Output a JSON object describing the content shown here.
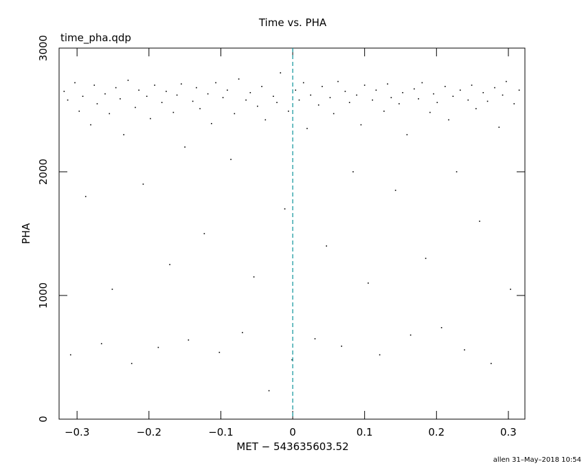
{
  "chart_data": {
    "type": "scatter",
    "title": "Time vs. PHA",
    "subtitle": "time_pha.qdp",
    "x_label": "MET − 543635603.52",
    "y_label": "PHA",
    "footer": "allen 31–May–2018 10:54",
    "color": "#000000",
    "vline": {
      "value": 0,
      "color": "#1a9aa0"
    },
    "xlim": [
      -0.325,
      0.323
    ],
    "ylim": [
      0,
      3000
    ],
    "xticks": [
      {
        "value": -0.3,
        "label": "−0.3"
      },
      {
        "value": -0.2,
        "label": "−0.2"
      },
      {
        "value": -0.1,
        "label": "−0.1"
      },
      0,
      0.1,
      0.2,
      0.3
    ],
    "yticks": [
      0,
      1000,
      2000,
      3000
    ],
    "x": [
      -0.318,
      -0.313,
      -0.309,
      -0.303,
      -0.297,
      -0.292,
      -0.288,
      -0.281,
      -0.276,
      -0.272,
      -0.266,
      -0.261,
      -0.255,
      -0.251,
      -0.246,
      -0.24,
      -0.235,
      -0.229,
      -0.224,
      -0.219,
      -0.214,
      -0.208,
      -0.203,
      -0.198,
      -0.192,
      -0.187,
      -0.182,
      -0.176,
      -0.171,
      -0.166,
      -0.161,
      -0.155,
      -0.15,
      -0.145,
      -0.139,
      -0.134,
      -0.129,
      -0.123,
      -0.118,
      -0.113,
      -0.107,
      -0.102,
      -0.097,
      -0.091,
      -0.086,
      -0.081,
      -0.075,
      -0.07,
      -0.065,
      -0.059,
      -0.054,
      -0.049,
      -0.043,
      -0.038,
      -0.033,
      -0.027,
      -0.022,
      -0.017,
      -0.011,
      -0.006,
      -0.001,
      0.004,
      0.009,
      0.015,
      0.02,
      0.025,
      0.031,
      0.036,
      0.041,
      0.047,
      0.052,
      0.057,
      0.063,
      0.068,
      0.073,
      0.079,
      0.084,
      0.089,
      0.095,
      0.1,
      0.105,
      0.111,
      0.116,
      0.121,
      0.127,
      0.132,
      0.137,
      0.143,
      0.148,
      0.153,
      0.159,
      0.164,
      0.169,
      0.175,
      0.18,
      0.185,
      0.191,
      0.196,
      0.201,
      0.207,
      0.212,
      0.217,
      0.223,
      0.228,
      0.233,
      0.239,
      0.244,
      0.249,
      0.255,
      0.26,
      0.265,
      0.271,
      0.276,
      0.281,
      0.287,
      0.292,
      0.297,
      0.303,
      0.308,
      0.315
    ],
    "values": [
      2650,
      2580,
      520,
      2720,
      2490,
      2610,
      1800,
      2380,
      2700,
      2550,
      610,
      2630,
      2470,
      1050,
      2680,
      2590,
      2300,
      2740,
      450,
      2520,
      2660,
      1900,
      2610,
      2430,
      2700,
      580,
      2560,
      2650,
      1250,
      2480,
      2620,
      2710,
      2200,
      640,
      2570,
      2680,
      2510,
      1500,
      2630,
      2390,
      2720,
      540,
      2600,
      2660,
      2100,
      2470,
      2750,
      700,
      2580,
      2640,
      1150,
      2530,
      2690,
      2420,
      230,
      2610,
      2560,
      2800,
      1700,
      2490,
      480,
      2660,
      2580,
      2720,
      2350,
      2620,
      650,
      2540,
      2690,
      1400,
      2600,
      2470,
      2730,
      590,
      2650,
      2560,
      2000,
      2620,
      2380,
      2700,
      1100,
      2580,
      2660,
      520,
      2490,
      2710,
      2600,
      1850,
      2550,
      2640,
      2300,
      680,
      2670,
      2590,
      2720,
      1300,
      2480,
      2630,
      2560,
      740,
      2690,
      2420,
      2610,
      2000,
      2660,
      560,
      2580,
      2700,
      2510,
      1600,
      2640,
      2570,
      450,
      2680,
      2360,
      2620,
      2730,
      1050,
      2550,
      2660
    ]
  }
}
